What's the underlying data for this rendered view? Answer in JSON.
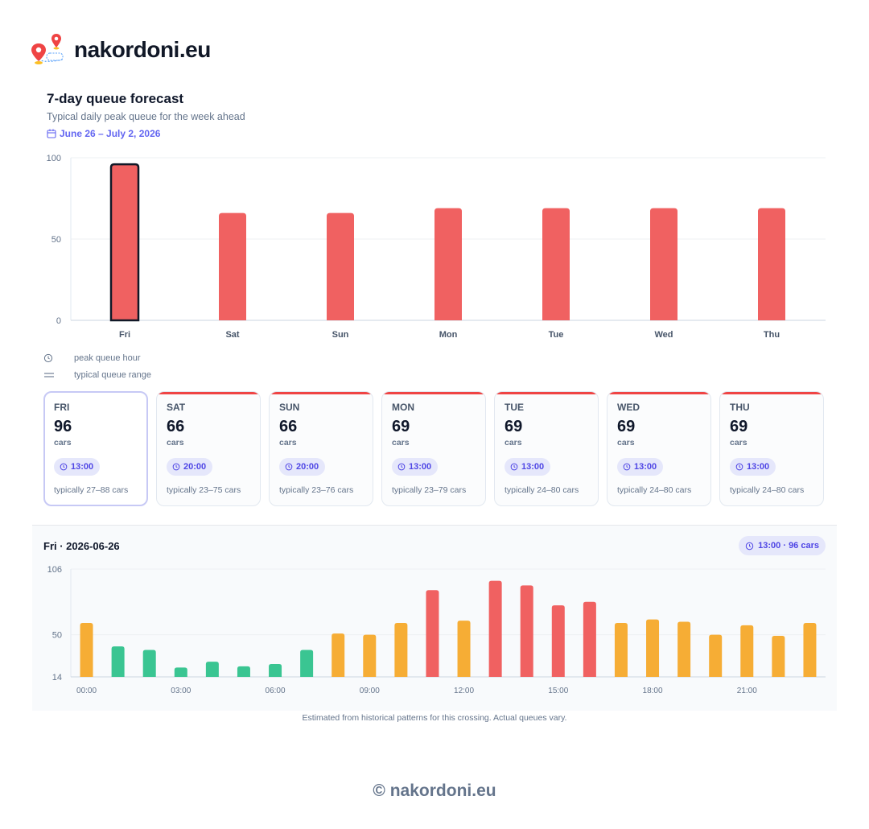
{
  "brand": {
    "name": "nakordoni.eu"
  },
  "header": {
    "title": "7-day queue forecast",
    "subtitle": "Typical daily peak queue for the week ahead",
    "date_range": "June 26 – July 2, 2026"
  },
  "colors": {
    "red": "#f06161",
    "amber": "#f6ad35",
    "green": "#3ac592",
    "accent": "#6366f1",
    "selected_outline": "#111827"
  },
  "legend": {
    "clock": "peak queue hour",
    "range": "typical queue range"
  },
  "chart_data": [
    {
      "type": "bar",
      "categories": [
        "Fri",
        "Sat",
        "Sun",
        "Mon",
        "Tue",
        "Wed",
        "Thu"
      ],
      "values": [
        96,
        66,
        66,
        69,
        69,
        69,
        69
      ],
      "ylim": [
        0,
        100
      ],
      "yticks": [
        0,
        50,
        100
      ],
      "highlight": "Fri"
    },
    {
      "type": "bar",
      "x": [
        "00:00",
        "01:00",
        "02:00",
        "03:00",
        "04:00",
        "05:00",
        "06:00",
        "07:00",
        "08:00",
        "09:00",
        "10:00",
        "11:00",
        "12:00",
        "13:00",
        "14:00",
        "15:00",
        "16:00",
        "17:00",
        "18:00",
        "19:00",
        "20:00",
        "21:00",
        "22:00",
        "23:00"
      ],
      "xticks": [
        "00:00",
        "03:00",
        "06:00",
        "09:00",
        "12:00",
        "15:00",
        "18:00",
        "21:00"
      ],
      "values": [
        60,
        40,
        37,
        22,
        27,
        23,
        25,
        37,
        51,
        50,
        60,
        88,
        62,
        96,
        92,
        75,
        78,
        60,
        63,
        61,
        50,
        58,
        49,
        60
      ],
      "levels": [
        "amber",
        "green",
        "green",
        "green",
        "green",
        "green",
        "green",
        "green",
        "amber",
        "amber",
        "amber",
        "red",
        "amber",
        "red",
        "red",
        "red",
        "red",
        "amber",
        "amber",
        "amber",
        "amber",
        "amber",
        "amber",
        "amber"
      ],
      "ylim": [
        14,
        106
      ],
      "yticks": [
        14,
        50,
        106
      ]
    }
  ],
  "cards": [
    {
      "day": "FRI",
      "value": "96",
      "unit": "cars",
      "peak": "13:00",
      "range": "typically 27–88 cars",
      "selected": true
    },
    {
      "day": "SAT",
      "value": "66",
      "unit": "cars",
      "peak": "20:00",
      "range": "typically 23–75 cars",
      "selected": false
    },
    {
      "day": "SUN",
      "value": "66",
      "unit": "cars",
      "peak": "20:00",
      "range": "typically 23–76 cars",
      "selected": false
    },
    {
      "day": "MON",
      "value": "69",
      "unit": "cars",
      "peak": "13:00",
      "range": "typically 23–79 cars",
      "selected": false
    },
    {
      "day": "TUE",
      "value": "69",
      "unit": "cars",
      "peak": "13:00",
      "range": "typically 24–80 cars",
      "selected": false
    },
    {
      "day": "WED",
      "value": "69",
      "unit": "cars",
      "peak": "13:00",
      "range": "typically 24–80 cars",
      "selected": false
    },
    {
      "day": "THU",
      "value": "69",
      "unit": "cars",
      "peak": "13:00",
      "range": "typically 24–80 cars",
      "selected": false
    }
  ],
  "detail": {
    "title": "Fri · 2026-06-26",
    "peak_badge": "13:00 · 96 cars"
  },
  "note": "Estimated from historical patterns for this crossing. Actual queues vary.",
  "footer": "© nakordoni.eu"
}
